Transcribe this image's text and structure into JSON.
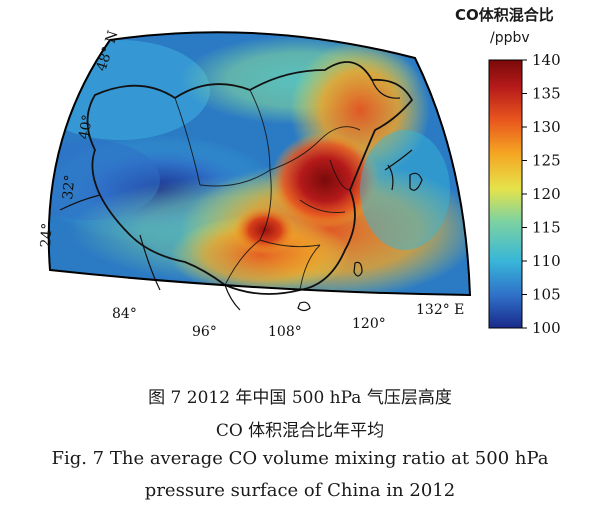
{
  "colorbar": {
    "title": "CO体积混合比",
    "unit": "/ppbv",
    "ticks": [
      "140",
      "135",
      "130",
      "125",
      "120",
      "115",
      "110",
      "105",
      "100"
    ],
    "range": [
      100,
      140
    ],
    "colors": [
      "#1a2a8a",
      "#2f6fc8",
      "#38b6d8",
      "#7ed3a0",
      "#e6e34a",
      "#f5a623",
      "#e8541e",
      "#b51a1a",
      "#7a0a0a"
    ]
  },
  "map": {
    "lon_labels": [
      "84°",
      "96°",
      "108°",
      "120°",
      "132° E"
    ],
    "lat_labels": [
      "48° N",
      "40°",
      "32°",
      "24°"
    ],
    "background_color": "#2b7ac4",
    "border_color": "#111111"
  },
  "caption": {
    "cn_line1": "图 7   2012 年中国 500 hPa 气压层高度",
    "cn_line2": "CO 体积混合比年平均",
    "en_line1": "Fig. 7    The average CO volume mixing ratio at 500 hPa",
    "en_line2": "pressure surface of China in 2012"
  }
}
